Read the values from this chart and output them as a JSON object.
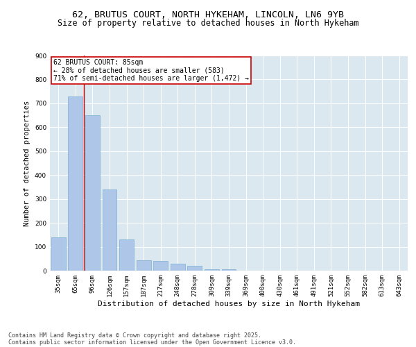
{
  "title_line1": "62, BRUTUS COURT, NORTH HYKEHAM, LINCOLN, LN6 9YB",
  "title_line2": "Size of property relative to detached houses in North Hykeham",
  "xlabel": "Distribution of detached houses by size in North Hykeham",
  "ylabel": "Number of detached properties",
  "categories": [
    "35sqm",
    "65sqm",
    "96sqm",
    "126sqm",
    "157sqm",
    "187sqm",
    "217sqm",
    "248sqm",
    "278sqm",
    "309sqm",
    "339sqm",
    "369sqm",
    "400sqm",
    "430sqm",
    "461sqm",
    "491sqm",
    "521sqm",
    "552sqm",
    "582sqm",
    "613sqm",
    "643sqm"
  ],
  "values": [
    140,
    730,
    650,
    340,
    130,
    45,
    40,
    30,
    20,
    5,
    5,
    0,
    0,
    0,
    0,
    0,
    0,
    0,
    0,
    0,
    0
  ],
  "bar_color": "#aec6e8",
  "bar_edge_color": "#7aadd4",
  "vline_x": 1.5,
  "vline_color": "#cc0000",
  "annotation_text": "62 BRUTUS COURT: 85sqm\n← 28% of detached houses are smaller (583)\n71% of semi-detached houses are larger (1,472) →",
  "annotation_box_color": "#ffffff",
  "annotation_box_edge": "#cc0000",
  "ylim": [
    0,
    900
  ],
  "yticks": [
    0,
    100,
    200,
    300,
    400,
    500,
    600,
    700,
    800,
    900
  ],
  "plot_bg_color": "#dce8f0",
  "grid_color": "#ffffff",
  "footer_line1": "Contains HM Land Registry data © Crown copyright and database right 2025.",
  "footer_line2": "Contains public sector information licensed under the Open Government Licence v3.0.",
  "title_fontsize": 9.5,
  "subtitle_fontsize": 8.5,
  "tick_fontsize": 6.5,
  "ylabel_fontsize": 7.5,
  "xlabel_fontsize": 8,
  "annotation_fontsize": 7,
  "footer_fontsize": 6
}
